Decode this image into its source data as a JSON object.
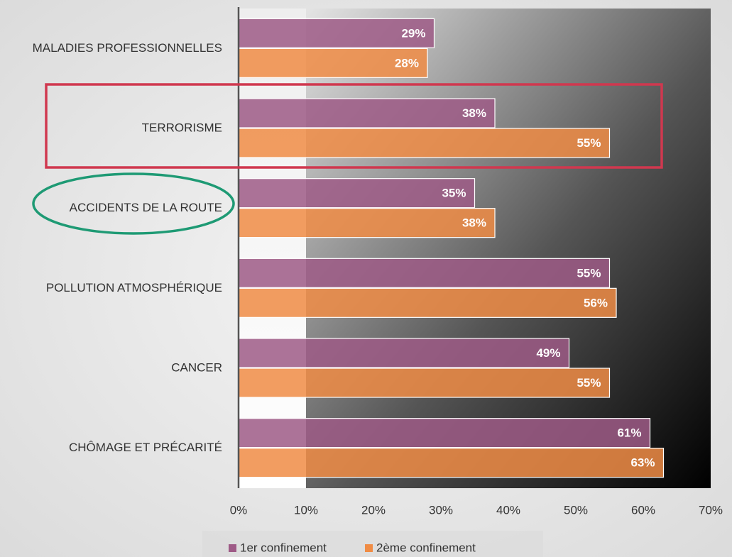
{
  "chart_data": {
    "type": "hbar",
    "categories": [
      "MALADIES PROFESSIONNELLES",
      "TERRORISME",
      "ACCIDENTS DE LA ROUTE",
      "POLLUTION ATMOSPHÉRIQUE",
      "CANCER",
      "CHÔMAGE ET PRÉCARITÉ"
    ],
    "series": [
      {
        "name": "1er confinement",
        "color": "#9e5a86",
        "values": [
          29,
          38,
          35,
          55,
          49,
          61
        ],
        "value_labels": [
          "29%",
          "38%",
          "35%",
          "55%",
          "49%",
          "61%"
        ]
      },
      {
        "name": "2ème confinement",
        "color": "#f08c45",
        "values": [
          28,
          55,
          38,
          56,
          55,
          63
        ],
        "value_labels": [
          "28%",
          "55%",
          "38%",
          "56%",
          "55%",
          "63%"
        ]
      }
    ],
    "xlim": [
      0,
      70
    ],
    "xticks": [
      {
        "value": 0,
        "label": "0%"
      },
      {
        "value": 10,
        "label": "10%"
      },
      {
        "value": 20,
        "label": "20%"
      },
      {
        "value": 30,
        "label": "30%"
      },
      {
        "value": 40,
        "label": "40%"
      },
      {
        "value": 50,
        "label": "50%"
      },
      {
        "value": 60,
        "label": "60%"
      },
      {
        "value": 70,
        "label": "70%"
      }
    ],
    "grid": false,
    "legend": "bottom"
  }
}
